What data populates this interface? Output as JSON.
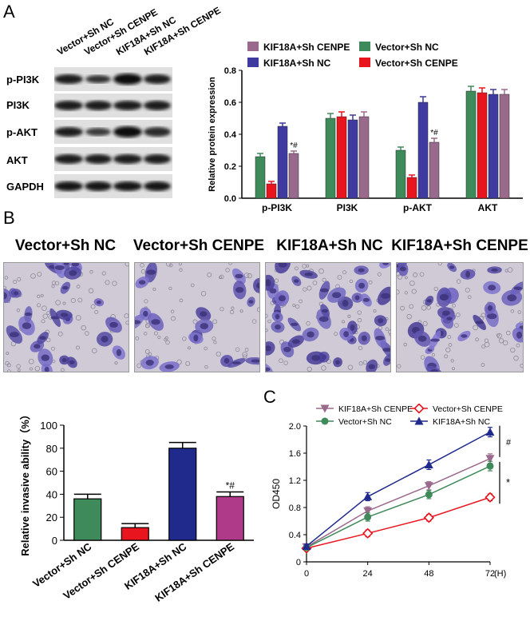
{
  "panels": {
    "a": "A",
    "b": "B",
    "c": "C"
  },
  "blot": {
    "lanes": [
      "Vector+Sh NC",
      "Vector+Sh CENPE",
      "KIF18A+Sh NC",
      "KIF18A+Sh CENPE"
    ],
    "rows": [
      "p-PI3K",
      "PI3K",
      "p-AKT",
      "AKT",
      "GAPDH"
    ]
  },
  "micrographs": {
    "titles": [
      "Vector+Sh NC",
      "Vector+Sh CENPE",
      "KIF18A+Sh NC",
      "KIF18A+Sh CENPE"
    ]
  },
  "chart_data": [
    {
      "type": "bar",
      "id": "protein-expression",
      "ylabel": "Relative protein expression",
      "categories": [
        "p-PI3K",
        "PI3K",
        "p-AKT",
        "AKT"
      ],
      "ylim": [
        0,
        0.8
      ],
      "yticks": [
        0.0,
        0.2,
        0.4,
        0.6,
        0.8
      ],
      "legend_order": [
        "KIF18A+Sh CENPE",
        "Vector+Sh NC",
        "KIF18A+Sh NC",
        "Vector+Sh CENPE"
      ],
      "series": [
        {
          "name": "Vector+Sh NC",
          "color": "#3f8a5a",
          "values": [
            0.26,
            0.5,
            0.3,
            0.67
          ],
          "errors": [
            0.02,
            0.03,
            0.02,
            0.03
          ]
        },
        {
          "name": "Vector+Sh CENPE",
          "color": "#e8141e",
          "values": [
            0.09,
            0.51,
            0.13,
            0.66
          ],
          "errors": [
            0.015,
            0.03,
            0.015,
            0.03
          ]
        },
        {
          "name": "KIF18A+Sh NC",
          "color": "#3e3aa0",
          "values": [
            0.45,
            0.49,
            0.6,
            0.65
          ],
          "errors": [
            0.02,
            0.03,
            0.035,
            0.03
          ]
        },
        {
          "name": "KIF18A+Sh CENPE",
          "color": "#9a6a8c",
          "values": [
            0.28,
            0.51,
            0.35,
            0.65
          ],
          "errors": [
            0.015,
            0.03,
            0.025,
            0.03
          ]
        }
      ],
      "annotations": [
        {
          "category": "p-PI3K",
          "series": "KIF18A+Sh CENPE",
          "text": "*#"
        },
        {
          "category": "p-AKT",
          "series": "KIF18A+Sh CENPE",
          "text": "*#"
        }
      ]
    },
    {
      "type": "bar",
      "id": "invasive-ability",
      "ylabel": "Relative invasive ability（%）",
      "categories": [
        "Vector+Sh NC",
        "Vector+Sh CENPE",
        "KIF18A+Sh NC",
        "KIF18A+Sh CENPE"
      ],
      "values": [
        36,
        11,
        80,
        38
      ],
      "errors": [
        4,
        3.5,
        5,
        4
      ],
      "colors": [
        "#3f8a5a",
        "#e8141e",
        "#1f2a8c",
        "#b03a8a"
      ],
      "ylim": [
        0,
        100
      ],
      "yticks": [
        0,
        20,
        40,
        60,
        80,
        100
      ],
      "annotations": [
        {
          "category": "KIF18A+Sh CENPE",
          "text": "*#"
        }
      ]
    },
    {
      "type": "line",
      "id": "od450-growth",
      "ylabel": "OD450",
      "x": [
        0,
        24,
        48,
        72
      ],
      "xtick_labels": [
        "0",
        "24",
        "48",
        "72"
      ],
      "xunit": "(H)",
      "ylim": [
        0,
        2.0
      ],
      "yticks": [
        "0",
        "0.4",
        "0.8",
        "1.2",
        "1.6",
        "2.0"
      ],
      "legend_order": [
        "KIF18A+Sh CENPE",
        "Vector+Sh CENPE",
        "Vector+Sh NC",
        "KIF18A+Sh NC"
      ],
      "series": [
        {
          "name": "KIF18A+Sh CENPE",
          "color": "#9a6a8c",
          "marker": "triangle-down",
          "values": [
            0.22,
            0.75,
            1.12,
            1.52
          ],
          "errors": [
            0.03,
            0.06,
            0.06,
            0.07
          ]
        },
        {
          "name": "Vector+Sh CENPE",
          "color": "#e8141e",
          "marker": "diamond",
          "values": [
            0.2,
            0.42,
            0.65,
            0.95
          ],
          "errors": [
            0.03,
            0.05,
            0.05,
            0.05
          ]
        },
        {
          "name": "Vector+Sh NC",
          "color": "#3f8a5a",
          "marker": "circle",
          "values": [
            0.21,
            0.66,
            0.99,
            1.41
          ],
          "errors": [
            0.03,
            0.06,
            0.06,
            0.07
          ]
        },
        {
          "name": "KIF18A+Sh NC",
          "color": "#1f2a8c",
          "marker": "triangle-up",
          "values": [
            0.23,
            0.96,
            1.43,
            1.91
          ],
          "errors": [
            0.03,
            0.06,
            0.07,
            0.07
          ]
        }
      ],
      "significance": [
        "#",
        "*"
      ]
    }
  ]
}
